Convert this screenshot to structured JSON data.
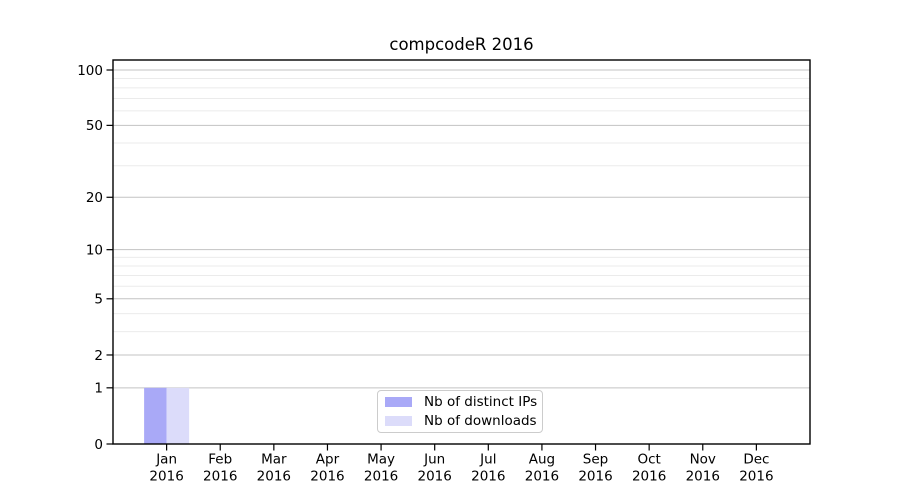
{
  "chart_data": {
    "type": "bar",
    "title": "compcodeR 2016",
    "x_axis": {
      "months": [
        "Jan",
        "Feb",
        "Mar",
        "Apr",
        "May",
        "Jun",
        "Jul",
        "Aug",
        "Sep",
        "Oct",
        "Nov",
        "Dec"
      ],
      "year": "2016"
    },
    "y_axis": {
      "scale": "log1p",
      "major_ticks": [
        0,
        1,
        2,
        5,
        10,
        20,
        50,
        100
      ],
      "minor_ticks": [
        3,
        4,
        6,
        7,
        8,
        9,
        30,
        40,
        60,
        70,
        80,
        90
      ],
      "ylim": [
        0,
        113
      ]
    },
    "series": [
      {
        "name": "Nb of distinct IPs",
        "color": "#a9a9f7",
        "values": [
          1,
          0,
          0,
          0,
          0,
          0,
          0,
          0,
          0,
          0,
          0,
          0
        ]
      },
      {
        "name": "Nb of downloads",
        "color": "#dcdcfa",
        "values": [
          1,
          0,
          0,
          0,
          0,
          0,
          0,
          0,
          0,
          0,
          0,
          0
        ]
      }
    ],
    "legend": {
      "position": "bottom-center",
      "border_color": "#cccccc"
    },
    "grid": {
      "major_color": "#c3c3c3",
      "minor_color": "#ebebeb"
    },
    "colors": {
      "axis": "#000000",
      "text": "#000000",
      "background": "#ffffff"
    }
  }
}
